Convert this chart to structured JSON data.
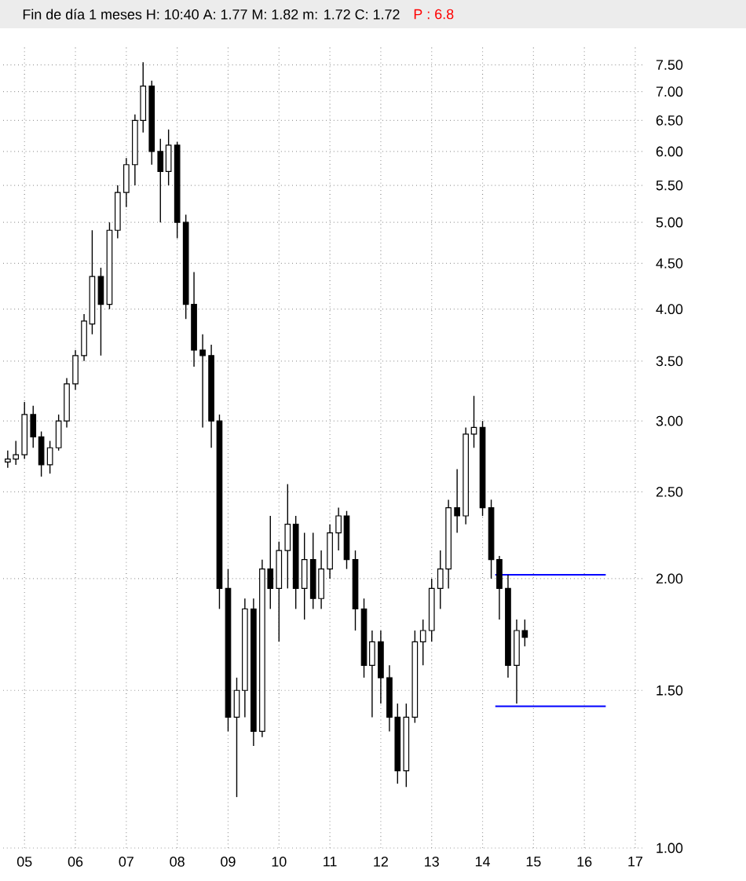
{
  "chart_data": {
    "type": "candlestick",
    "title": "Fin de día 1 meses  H: 10:40  A: 1.77  M: 1.82  m: 1.72  C: 1.72",
    "annotations": [
      "P : 6.8"
    ],
    "x": [
      "2004-09",
      "2004-11",
      "2005-01",
      "2005-03",
      "2005-05",
      "2005-07",
      "2005-09",
      "2005-11",
      "2006-01",
      "2006-03",
      "2006-05",
      "2006-07",
      "2006-09",
      "2006-11",
      "2007-01",
      "2007-03",
      "2007-05",
      "2007-07",
      "2007-09",
      "2007-11",
      "2008-01",
      "2008-03",
      "2008-05",
      "2008-07",
      "2008-09",
      "2008-11",
      "2009-01",
      "2009-03",
      "2009-05",
      "2009-07",
      "2009-09",
      "2009-11",
      "2010-01",
      "2010-03",
      "2010-05",
      "2010-07",
      "2010-09",
      "2010-11",
      "2011-01",
      "2011-03",
      "2011-05",
      "2011-07",
      "2011-09",
      "2011-11",
      "2012-01",
      "2012-03",
      "2012-05",
      "2012-07",
      "2012-09",
      "2012-11",
      "2013-01",
      "2013-03",
      "2013-05",
      "2013-07",
      "2013-09",
      "2013-11",
      "2014-01",
      "2014-03",
      "2014-05",
      "2014-07",
      "2014-09",
      "2014-11"
    ],
    "ohlc": [
      [
        2.7,
        2.78,
        2.66,
        2.72
      ],
      [
        2.72,
        2.85,
        2.68,
        2.75
      ],
      [
        2.75,
        3.15,
        2.72,
        3.05
      ],
      [
        3.05,
        3.12,
        2.8,
        2.88
      ],
      [
        2.88,
        2.92,
        2.6,
        2.68
      ],
      [
        2.68,
        2.85,
        2.62,
        2.8
      ],
      [
        2.8,
        3.05,
        2.78,
        3.0
      ],
      [
        3.0,
        3.35,
        2.95,
        3.3
      ],
      [
        3.3,
        3.6,
        3.25,
        3.55
      ],
      [
        3.55,
        3.95,
        3.5,
        3.88
      ],
      [
        3.85,
        4.9,
        3.75,
        4.35
      ],
      [
        4.35,
        4.45,
        3.55,
        4.05
      ],
      [
        4.05,
        5.0,
        4.0,
        4.9
      ],
      [
        4.9,
        5.5,
        4.8,
        5.4
      ],
      [
        5.4,
        5.9,
        5.2,
        5.8
      ],
      [
        5.8,
        6.6,
        5.5,
        6.5
      ],
      [
        6.5,
        7.55,
        6.3,
        7.1
      ],
      [
        7.1,
        7.2,
        5.8,
        6.0
      ],
      [
        6.0,
        6.2,
        5.0,
        5.7
      ],
      [
        5.7,
        6.35,
        5.5,
        6.1
      ],
      [
        6.1,
        6.15,
        4.8,
        5.0
      ],
      [
        5.0,
        5.1,
        3.9,
        4.05
      ],
      [
        4.05,
        4.4,
        3.45,
        3.6
      ],
      [
        3.6,
        3.75,
        2.95,
        3.55
      ],
      [
        3.55,
        3.65,
        2.8,
        3.0
      ],
      [
        3.0,
        3.05,
        1.85,
        1.95
      ],
      [
        1.95,
        2.05,
        1.35,
        1.4
      ],
      [
        1.4,
        1.55,
        1.14,
        1.5
      ],
      [
        1.5,
        1.9,
        1.4,
        1.85
      ],
      [
        1.85,
        1.9,
        1.3,
        1.35
      ],
      [
        1.35,
        2.1,
        1.33,
        2.05
      ],
      [
        2.05,
        2.35,
        1.85,
        1.95
      ],
      [
        1.95,
        2.2,
        1.7,
        2.15
      ],
      [
        2.15,
        2.55,
        1.95,
        2.3
      ],
      [
        2.3,
        2.35,
        1.85,
        1.95
      ],
      [
        1.95,
        2.25,
        1.8,
        2.1
      ],
      [
        2.1,
        2.25,
        1.85,
        1.9
      ],
      [
        1.9,
        2.15,
        1.85,
        2.05
      ],
      [
        2.05,
        2.3,
        2.0,
        2.25
      ],
      [
        2.25,
        2.4,
        2.15,
        2.35
      ],
      [
        2.35,
        2.38,
        2.05,
        2.1
      ],
      [
        2.1,
        2.15,
        1.75,
        1.85
      ],
      [
        1.85,
        1.9,
        1.55,
        1.6
      ],
      [
        1.6,
        1.75,
        1.4,
        1.7
      ],
      [
        1.7,
        1.75,
        1.45,
        1.55
      ],
      [
        1.55,
        1.6,
        1.35,
        1.4
      ],
      [
        1.4,
        1.45,
        1.18,
        1.22
      ],
      [
        1.22,
        1.45,
        1.17,
        1.4
      ],
      [
        1.4,
        1.75,
        1.38,
        1.7
      ],
      [
        1.7,
        1.8,
        1.6,
        1.75
      ],
      [
        1.75,
        2.0,
        1.7,
        1.95
      ],
      [
        1.95,
        2.15,
        1.85,
        2.05
      ],
      [
        2.05,
        2.45,
        1.95,
        2.4
      ],
      [
        2.4,
        2.65,
        2.25,
        2.35
      ],
      [
        2.35,
        2.95,
        2.3,
        2.9
      ],
      [
        2.9,
        3.2,
        2.8,
        2.95
      ],
      [
        2.95,
        3.0,
        2.35,
        2.4
      ],
      [
        2.4,
        2.45,
        2.0,
        2.1
      ],
      [
        2.1,
        2.12,
        1.8,
        1.95
      ],
      [
        1.95,
        2.02,
        1.55,
        1.6
      ],
      [
        1.6,
        1.8,
        1.45,
        1.75
      ],
      [
        1.75,
        1.8,
        1.68,
        1.72
      ]
    ],
    "series": [
      {
        "type": "line",
        "color": "#0000ff",
        "x": [
          "2014-04",
          "2016-06"
        ],
        "values": [
          2.02,
          2.02
        ]
      },
      {
        "type": "line",
        "color": "#0000ff",
        "x": [
          "2014-04",
          "2016-06"
        ],
        "values": [
          1.44,
          1.44
        ]
      }
    ],
    "log": true,
    "grid": true,
    "xlim": [
      "2004-08",
      "2017-03"
    ],
    "xticks": [
      {
        "value": "2005",
        "label": "05"
      },
      {
        "value": "2006",
        "label": "06"
      },
      {
        "value": "2007",
        "label": "07"
      },
      {
        "value": "2008",
        "label": "08"
      },
      {
        "value": "2009",
        "label": "09"
      },
      {
        "value": "2010",
        "label": "10"
      },
      {
        "value": "2011",
        "label": "11"
      },
      {
        "value": "2012",
        "label": "12"
      },
      {
        "value": "2013",
        "label": "13"
      },
      {
        "value": "2014",
        "label": "14"
      },
      {
        "value": "2015",
        "label": "15"
      },
      {
        "value": "2016",
        "label": "16"
      },
      {
        "value": "2017",
        "label": "17"
      }
    ],
    "ylim": [
      1.0,
      7.85
    ],
    "yticks": [
      {
        "value": 1.0,
        "label": "1.00"
      },
      {
        "value": 1.5,
        "label": "1.50"
      },
      {
        "value": 2.0,
        "label": "2.00"
      },
      {
        "value": 2.5,
        "label": "2.50"
      },
      {
        "value": 3.0,
        "label": "3.00"
      },
      {
        "value": 3.5,
        "label": "3.50"
      },
      {
        "value": 4.0,
        "label": "4.00"
      },
      {
        "value": 4.5,
        "label": "4.50"
      },
      {
        "value": 5.0,
        "label": "5.00"
      },
      {
        "value": 5.5,
        "label": "5.50"
      },
      {
        "value": 6.0,
        "label": "6.00"
      },
      {
        "value": 6.5,
        "label": "6.50"
      },
      {
        "value": 7.0,
        "label": "7.00"
      },
      {
        "value": 7.5,
        "label": "7.50"
      }
    ]
  }
}
